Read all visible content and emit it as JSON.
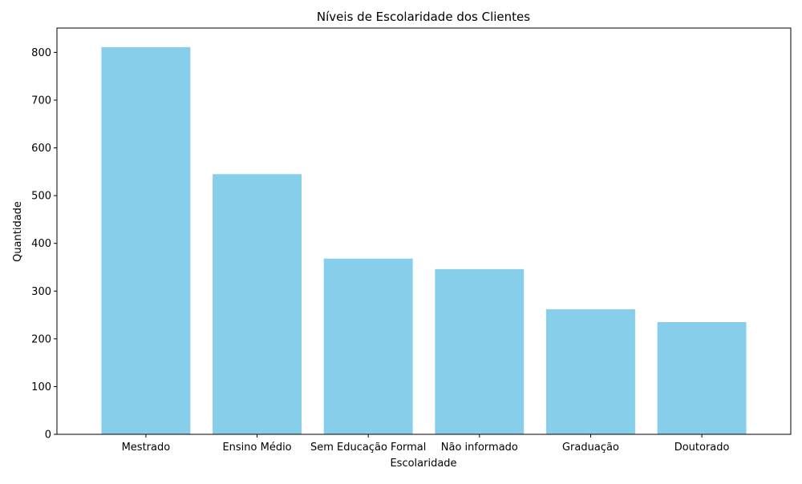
{
  "chart_data": {
    "type": "bar",
    "title": "Níveis de Escolaridade dos Clientes",
    "xlabel": "Escolaridade",
    "ylabel": "Quantidade",
    "categories": [
      "Mestrado",
      "Ensino Médio",
      "Sem Educação Formal",
      "Não informado",
      "Graduação",
      "Doutorado"
    ],
    "values": [
      811,
      545,
      368,
      346,
      262,
      235
    ],
    "ylim": [
      0,
      851
    ],
    "yticks": [
      0,
      100,
      200,
      300,
      400,
      500,
      600,
      700,
      800
    ],
    "bar_color": "#87CEEB",
    "grid": false,
    "legend": "none"
  }
}
